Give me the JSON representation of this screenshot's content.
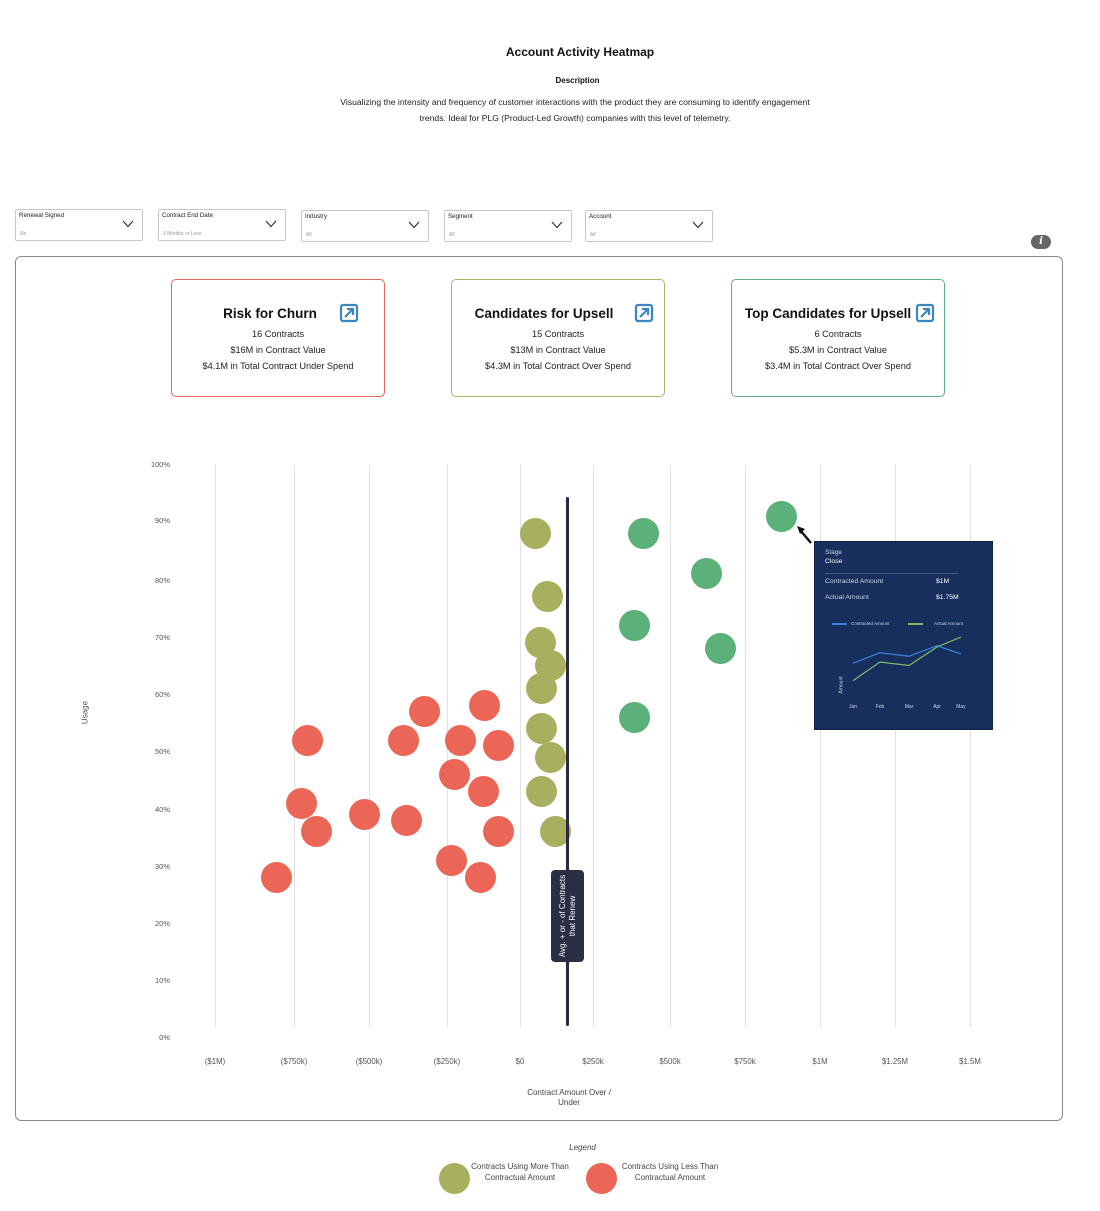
{
  "header": {
    "title": "Account Activity Heatmap",
    "description_heading": "Description",
    "description": "Visualizing the intensity and frequency of customer interactions with the product they are consuming to identify engagement trends. Ideal for PLG (Product-Led Growth) companies with this level of telemetry."
  },
  "filters": [
    {
      "label": "Renewal Signed",
      "value": "No"
    },
    {
      "label": "Contract End Date",
      "value": "3 Months or Less"
    },
    {
      "label": "Industry",
      "value": "All"
    },
    {
      "label": "Segment",
      "value": "All"
    },
    {
      "label": "Account",
      "value": "All"
    }
  ],
  "info_icon": "i",
  "cards": [
    {
      "title": "Risk for Churn",
      "contracts": "16 Contracts",
      "value": "$16M in Contract Value",
      "spend": "$4.1M in Total Contract Under Spend",
      "border_color": "#e8665a"
    },
    {
      "title": "Candidates for Upsell",
      "contracts": "15 Contracts",
      "value": "$13M in Contract Value",
      "spend": "$4.3M in Total Contract Over Spend",
      "border_color": "#a8b56b"
    },
    {
      "title": "Top Candidates for Upsell",
      "contracts": "6 Contracts",
      "value": "$5.3M in Contract Value",
      "spend": "$3.4M in Total Contract Over Spend",
      "border_color": "#5cb07a"
    }
  ],
  "colors": {
    "over": "#a8b060",
    "under": "#ec6657",
    "top": "#5cb07a",
    "link_icon": "#3a86c0",
    "avg_line": "#2a2a3e",
    "tooltip_bg": "#172f5c"
  },
  "avg_marker_label": "Avg. + or - of Contracts that Renew",
  "tooltip": {
    "stage_label": "Stage",
    "stage_value": "Close",
    "rows": [
      {
        "label": "Contracted Amount",
        "value": "$1M"
      },
      {
        "label": "Actual Amount",
        "value": "$1.75M"
      }
    ],
    "legend": [
      "Contracted Amount",
      "Actual Amount"
    ],
    "y_label": "Amount",
    "months": [
      "Jan",
      "Feb",
      "Mar",
      "Apr",
      "May"
    ]
  },
  "legend": {
    "title": "Legend",
    "over_label": "Contracts Using More Than Contractual Amount",
    "under_label": "Contracts Using Less Than Contractual Amount"
  },
  "chart_data": {
    "type": "scatter",
    "title": "Account Activity Heatmap",
    "xlabel": "Contract Amount Over / Under",
    "ylabel": "Usage",
    "x_ticks": [
      "($1M)",
      "($750k)",
      "($500k)",
      "($250k)",
      "$0",
      "$250k",
      "$500k",
      "$750k",
      "$1M",
      "$1.25M",
      "$1.5M"
    ],
    "y_ticks": [
      "100%",
      "90%",
      "80%",
      "70%",
      "60%",
      "50%",
      "40%",
      "30%",
      "20%",
      "10%",
      "0%"
    ],
    "xlim": [
      -1000,
      1500
    ],
    "ylim": [
      0,
      100
    ],
    "x_units": "$k",
    "grid": true,
    "avg_line_x": 157,
    "series": [
      {
        "name": "Contracts Using Less Than Contractual Amount",
        "color": "#ec6657",
        "points": [
          {
            "x": -710,
            "y": 52
          },
          {
            "x": -730,
            "y": 41
          },
          {
            "x": -680,
            "y": 36
          },
          {
            "x": -813,
            "y": 28
          },
          {
            "x": -520,
            "y": 39
          },
          {
            "x": -390,
            "y": 52
          },
          {
            "x": -320,
            "y": 57
          },
          {
            "x": -380,
            "y": 38
          },
          {
            "x": -197,
            "y": 52
          },
          {
            "x": -217,
            "y": 46
          },
          {
            "x": -227,
            "y": 31
          },
          {
            "x": -120,
            "y": 58
          },
          {
            "x": -73,
            "y": 51
          },
          {
            "x": -123,
            "y": 43
          },
          {
            "x": -73,
            "y": 36
          },
          {
            "x": -133,
            "y": 28
          }
        ]
      },
      {
        "name": "Contracts Using More Than Contractual Amount",
        "color": "#a8b060",
        "points": [
          {
            "x": 50,
            "y": 88
          },
          {
            "x": 90,
            "y": 77
          },
          {
            "x": 67,
            "y": 69
          },
          {
            "x": 103,
            "y": 65
          },
          {
            "x": 73,
            "y": 61
          },
          {
            "x": 73,
            "y": 54
          },
          {
            "x": 103,
            "y": 49
          },
          {
            "x": 73,
            "y": 43
          },
          {
            "x": 117,
            "y": 36
          }
        ]
      },
      {
        "name": "Top Candidates for Upsell",
        "color": "#5cb07a",
        "points": [
          {
            "x": 873,
            "y": 91
          },
          {
            "x": 410,
            "y": 88
          },
          {
            "x": 620,
            "y": 81
          },
          {
            "x": 380,
            "y": 72
          },
          {
            "x": 667,
            "y": 68
          },
          {
            "x": 380,
            "y": 56
          }
        ]
      }
    ],
    "tooltip_series": {
      "x": [
        "Jan",
        "Feb",
        "Mar",
        "Apr",
        "May"
      ],
      "series": [
        {
          "name": "Contracted Amount",
          "values": [
            0.6,
            0.78,
            0.72,
            0.9,
            0.76
          ]
        },
        {
          "name": "Actual Amount",
          "values": [
            0.3,
            0.62,
            0.56,
            0.88,
            1.05
          ]
        }
      ]
    },
    "legend_position": "bottom"
  }
}
